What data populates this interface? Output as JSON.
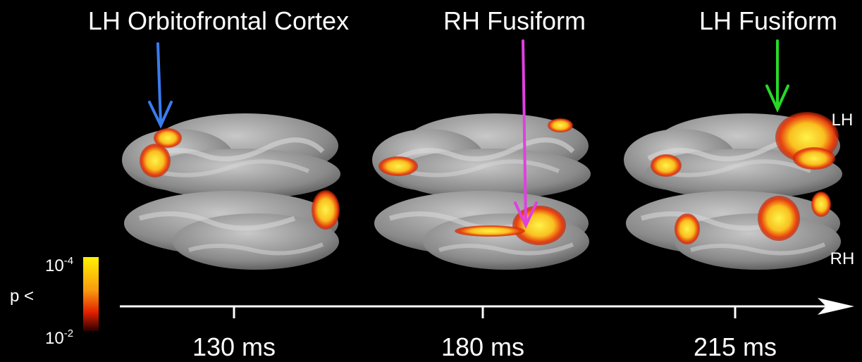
{
  "panels": [
    {
      "label": "LH Orbitofrontal Cortex",
      "time": "130 ms"
    },
    {
      "label": "RH Fusiform",
      "time": "180 ms"
    },
    {
      "label": "LH Fusiform",
      "time": "215 ms"
    }
  ],
  "hemisphere_labels": {
    "top": "LH",
    "bottom": "RH"
  },
  "colorbar": {
    "title": "p <",
    "max": {
      "base": "10",
      "exponent": "-4"
    },
    "min": {
      "base": "10",
      "exponent": "-2"
    }
  }
}
